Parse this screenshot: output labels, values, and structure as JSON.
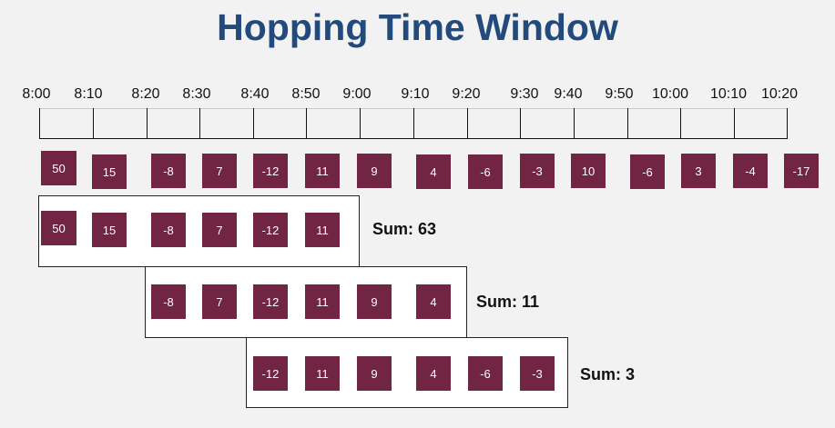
{
  "title": "Hopping Time Window",
  "tick_labels": [
    "8:00",
    "8:10",
    "8:20",
    "8:30",
    "8:40",
    "8:50",
    "9:00",
    "9:10",
    "9:20",
    "9:30",
    "9:40",
    "9:50",
    "10:00",
    "10:10",
    "10:20"
  ],
  "events": [
    "50",
    "15",
    "-8",
    "7",
    "-12",
    "11",
    "9",
    "4",
    "-6",
    "-3",
    "10",
    "-6",
    "3",
    "-4",
    "-17"
  ],
  "windows": [
    {
      "values": [
        "50",
        "15",
        "-8",
        "7",
        "-12",
        "11"
      ],
      "sum": "Sum: 63"
    },
    {
      "values": [
        "-8",
        "7",
        "-12",
        "11",
        "9",
        "4"
      ],
      "sum": "Sum: 11"
    },
    {
      "values": [
        "-12",
        "11",
        "9",
        "4",
        "-6",
        "-3"
      ],
      "sum": "Sum: 3"
    }
  ],
  "colors": {
    "title": "#234a7c",
    "event": "#722543",
    "background": "#f2f2f2"
  }
}
